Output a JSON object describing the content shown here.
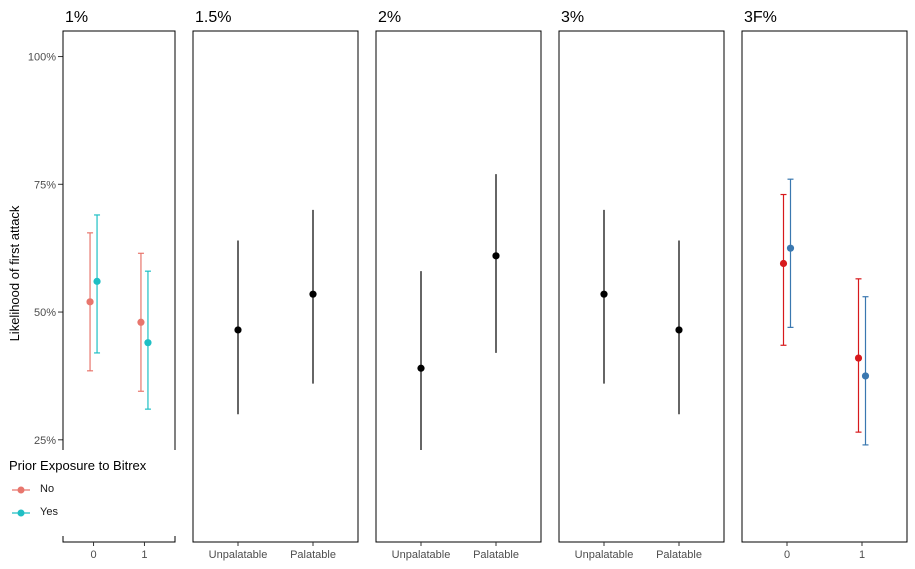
{
  "chart_data": {
    "type": "scatter",
    "ylabel": "Likelihood of first attack",
    "ylim": [
      0.05,
      1.05
    ],
    "y_ticks": [
      {
        "value": 0.25,
        "label": "25%"
      },
      {
        "value": 0.5,
        "label": "50%"
      },
      {
        "value": 0.75,
        "label": "75%"
      },
      {
        "value": 1.0,
        "label": "100%"
      }
    ],
    "legend": {
      "title": "Prior Exposure to Bitrex",
      "items": [
        {
          "label": "No",
          "color": "#E8766D"
        },
        {
          "label": "Yes",
          "color": "#1FBFC4"
        }
      ]
    },
    "panels": [
      {
        "title": "1%",
        "x_ticks": [
          "0",
          "1"
        ],
        "series": [
          {
            "color": "#E8766D",
            "points": [
              {
                "x": "0",
                "y": 0.52,
                "lo": 0.385,
                "hi": 0.655
              },
              {
                "x": "1",
                "y": 0.48,
                "lo": 0.345,
                "hi": 0.615
              }
            ]
          },
          {
            "color": "#1FBFC4",
            "points": [
              {
                "x": "0",
                "y": 0.56,
                "lo": 0.42,
                "hi": 0.69
              },
              {
                "x": "1",
                "y": 0.44,
                "lo": 0.31,
                "hi": 0.58
              }
            ]
          }
        ]
      },
      {
        "title": "1.5%",
        "x_ticks": [
          "Unpalatable",
          "Palatable"
        ],
        "series": [
          {
            "color": "#000000",
            "points": [
              {
                "x": "Unpalatable",
                "y": 0.465,
                "lo": 0.3,
                "hi": 0.64
              },
              {
                "x": "Palatable",
                "y": 0.535,
                "lo": 0.36,
                "hi": 0.7
              }
            ]
          }
        ]
      },
      {
        "title": "2%",
        "x_ticks": [
          "Unpalatable",
          "Palatable"
        ],
        "series": [
          {
            "color": "#000000",
            "points": [
              {
                "x": "Unpalatable",
                "y": 0.39,
                "lo": 0.23,
                "hi": 0.58
              },
              {
                "x": "Palatable",
                "y": 0.61,
                "lo": 0.42,
                "hi": 0.77
              }
            ]
          }
        ]
      },
      {
        "title": "3%",
        "x_ticks": [
          "Unpalatable",
          "Palatable"
        ],
        "series": [
          {
            "color": "#000000",
            "points": [
              {
                "x": "Unpalatable",
                "y": 0.535,
                "lo": 0.36,
                "hi": 0.7
              },
              {
                "x": "Palatable",
                "y": 0.465,
                "lo": 0.3,
                "hi": 0.64
              }
            ]
          }
        ]
      },
      {
        "title": "3F%",
        "x_ticks": [
          "0",
          "1"
        ],
        "series": [
          {
            "color": "#D7191C",
            "points": [
              {
                "x": "0",
                "y": 0.595,
                "lo": 0.435,
                "hi": 0.73
              },
              {
                "x": "1",
                "y": 0.41,
                "lo": 0.265,
                "hi": 0.565
              }
            ]
          },
          {
            "color": "#3A78B0",
            "points": [
              {
                "x": "0",
                "y": 0.625,
                "lo": 0.47,
                "hi": 0.76
              },
              {
                "x": "1",
                "y": 0.375,
                "lo": 0.24,
                "hi": 0.53
              }
            ]
          }
        ]
      }
    ]
  }
}
